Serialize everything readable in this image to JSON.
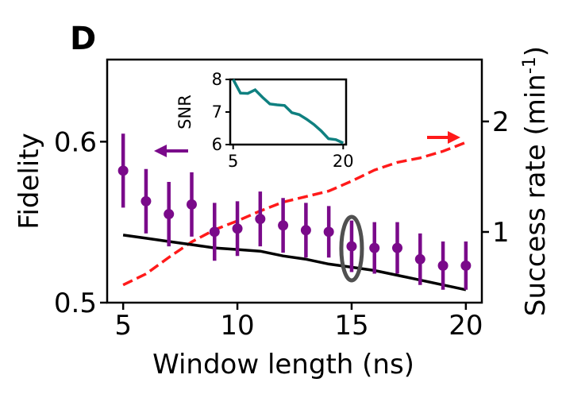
{
  "panel_label": "D",
  "colors": {
    "fidelity_points": "#7a0a8a",
    "fidelity_line": "#000000",
    "success_rate": "#ff1a1a",
    "snr_line": "#0f8080",
    "highlight_ellipse": "#505050"
  },
  "chart_data": [
    {
      "type": "line",
      "title": "",
      "xlabel": "Window length (ns)",
      "ylabel": "Fidelity",
      "y2label": "Success rate (min",
      "y2label_superscript": "-1",
      "y2label_close": ")",
      "xlim": [
        4.3,
        20.7
      ],
      "ylim": [
        0.5,
        0.651
      ],
      "y2lim": [
        0.36,
        2.56
      ],
      "xticks": [
        5,
        10,
        15,
        20
      ],
      "yticks": [
        0.5,
        0.6
      ],
      "ytick_labels": [
        "0.5",
        "0.6"
      ],
      "y2ticks": [
        1,
        2
      ],
      "grid": false,
      "series": [
        {
          "style": "errorbar-points",
          "axis": "left",
          "x": [
            5,
            6,
            7,
            8,
            9,
            10,
            11,
            12,
            13,
            14,
            15,
            16,
            17,
            18,
            19,
            20
          ],
          "values": [
            0.582,
            0.563,
            0.555,
            0.561,
            0.544,
            0.546,
            0.552,
            0.548,
            0.545,
            0.544,
            0.535,
            0.534,
            0.534,
            0.527,
            0.523,
            0.523
          ],
          "errors": [
            0.023,
            0.02,
            0.02,
            0.02,
            0.018,
            0.017,
            0.017,
            0.017,
            0.017,
            0.016,
            0.016,
            0.016,
            0.016,
            0.016,
            0.015,
            0.015
          ]
        },
        {
          "style": "solid-line",
          "axis": "left",
          "x": [
            5,
            6,
            7,
            8,
            9,
            10,
            11,
            12,
            13,
            14,
            15,
            16,
            17,
            18,
            19,
            20
          ],
          "values": [
            0.542,
            0.54,
            0.538,
            0.536,
            0.534,
            0.533,
            0.532,
            0.529,
            0.527,
            0.524,
            0.522,
            0.52,
            0.517,
            0.514,
            0.511,
            0.508
          ]
        },
        {
          "style": "dashed-line",
          "axis": "right",
          "x": [
            5,
            6,
            7,
            8,
            9,
            10,
            11,
            12,
            13,
            14,
            15,
            16,
            17,
            18,
            19,
            20
          ],
          "values": [
            0.52,
            0.62,
            0.77,
            0.91,
            1.02,
            1.1,
            1.19,
            1.27,
            1.32,
            1.37,
            1.46,
            1.56,
            1.63,
            1.67,
            1.73,
            1.81
          ]
        }
      ],
      "annotations": [
        {
          "type": "arrow",
          "direction": "left",
          "color": "#7a0a8a",
          "points_to_axis": "left"
        },
        {
          "type": "arrow",
          "direction": "right",
          "color": "#ff1a1a",
          "points_to_axis": "right"
        },
        {
          "type": "ellipse",
          "around_x": 15,
          "color": "#505050"
        }
      ]
    },
    {
      "type": "line",
      "title": "",
      "xlabel": "",
      "ylabel": "SNR",
      "xlim": [
        4.6,
        20.4
      ],
      "ylim": [
        6,
        8
      ],
      "xticks": [
        5,
        20
      ],
      "yticks": [
        6,
        7,
        8
      ],
      "grid": false,
      "series": [
        {
          "x": [
            5,
            6,
            7,
            8,
            9,
            10,
            11,
            12,
            13,
            14,
            15,
            16,
            17,
            18,
            19,
            20
          ],
          "values": [
            8.0,
            7.58,
            7.57,
            7.68,
            7.45,
            7.25,
            7.22,
            7.2,
            6.98,
            6.92,
            6.78,
            6.62,
            6.42,
            6.18,
            6.15,
            6.05
          ]
        }
      ]
    }
  ]
}
